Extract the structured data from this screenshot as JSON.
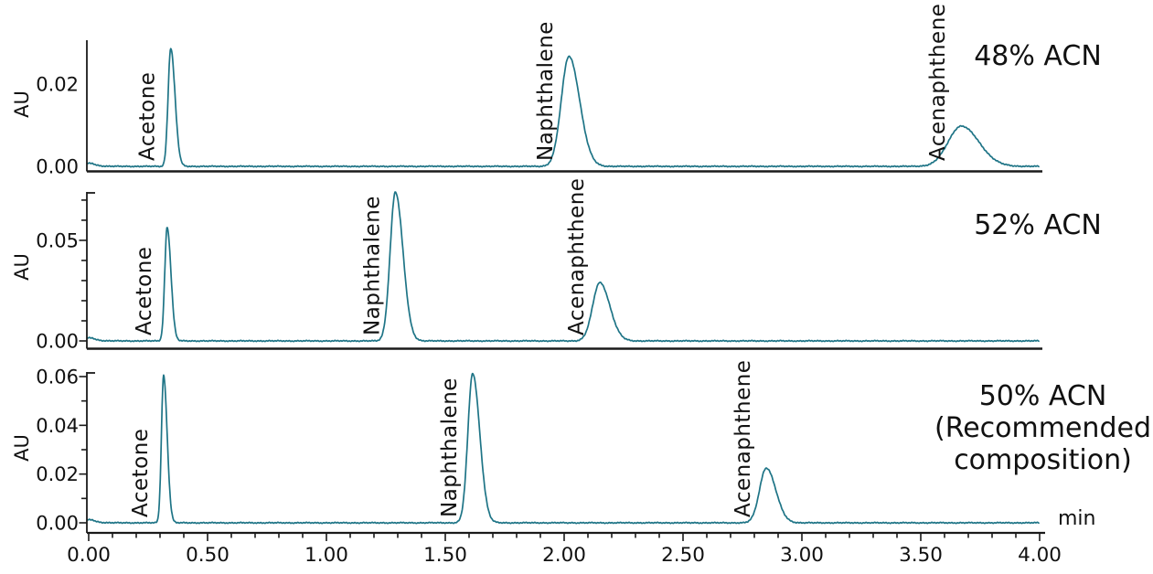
{
  "figure": {
    "kind": "HPLC chromatogram mobile-phase comparison",
    "x_axis": {
      "label": "min",
      "min": 0,
      "max": 4,
      "major_tick_step": 0.5,
      "minor_tick_step": 0.1,
      "tick_labels": [
        "0.00",
        "0.50",
        "1.00",
        "1.50",
        "2.00",
        "2.50",
        "3.00",
        "3.50",
        "4.00"
      ]
    }
  },
  "colors": {
    "trace": "#1e7486",
    "axis": "#1a1a1a",
    "text": "#111111",
    "background": "#ffffff"
  },
  "chart_data": [
    {
      "type": "line",
      "title": "48% ACN",
      "title_lines": [
        "48% ACN"
      ],
      "ylabel": "AU",
      "xlabel": "min",
      "xlim": [
        0,
        4
      ],
      "ylim": [
        0,
        0.0305
      ],
      "grid": false,
      "ytick_labels": [
        {
          "value": 0.0,
          "label": "0.00"
        },
        {
          "value": 0.02,
          "label": "0.02"
        }
      ],
      "minor_ytick_step": 0,
      "peaks": [
        {
          "name": "Acetone",
          "rt_min": 0.345,
          "height_au": 0.0288,
          "sigma_left_min": 0.011,
          "sigma_right_min": 0.018
        },
        {
          "name": "Naphthalene",
          "rt_min": 2.02,
          "height_au": 0.0268,
          "sigma_left_min": 0.032,
          "sigma_right_min": 0.045
        },
        {
          "name": "Acenaphthene",
          "rt_min": 3.67,
          "height_au": 0.0098,
          "sigma_left_min": 0.055,
          "sigma_right_min": 0.075
        }
      ]
    },
    {
      "type": "line",
      "title": "52% ACN",
      "title_lines": [
        "52% ACN"
      ],
      "ylabel": "AU",
      "xlabel": "min",
      "xlim": [
        0,
        4
      ],
      "ylim": [
        0,
        0.0736
      ],
      "grid": false,
      "ytick_labels": [
        {
          "value": 0.0,
          "label": "0.00"
        },
        {
          "value": 0.05,
          "label": "0.05"
        }
      ],
      "minor_ytick_step": 0.01,
      "peaks": [
        {
          "name": "Acetone",
          "rt_min": 0.33,
          "height_au": 0.0565,
          "sigma_left_min": 0.01,
          "sigma_right_min": 0.016
        },
        {
          "name": "Naphthalene",
          "rt_min": 1.29,
          "height_au": 0.074,
          "sigma_left_min": 0.022,
          "sigma_right_min": 0.032
        },
        {
          "name": "Acenaphthene",
          "rt_min": 2.15,
          "height_au": 0.029,
          "sigma_left_min": 0.03,
          "sigma_right_min": 0.042
        }
      ]
    },
    {
      "type": "line",
      "title": "50% ACN (Recommended composition)",
      "title_lines": [
        "50% ACN",
        "(Recommended",
        "composition)"
      ],
      "ylabel": "AU",
      "xlabel": "min",
      "xlim": [
        0,
        4
      ],
      "ylim": [
        0,
        0.0615
      ],
      "grid": false,
      "ytick_labels": [
        {
          "value": 0.0,
          "label": "0.00"
        },
        {
          "value": 0.02,
          "label": "0.02"
        },
        {
          "value": 0.04,
          "label": "0.04"
        },
        {
          "value": 0.06,
          "label": "0.06"
        }
      ],
      "minor_ytick_step": 0.01,
      "peaks": [
        {
          "name": "Acetone",
          "rt_min": 0.315,
          "height_au": 0.0605,
          "sigma_left_min": 0.009,
          "sigma_right_min": 0.015
        },
        {
          "name": "Naphthalene",
          "rt_min": 1.615,
          "height_au": 0.0613,
          "sigma_left_min": 0.02,
          "sigma_right_min": 0.03
        },
        {
          "name": "Acenaphthene",
          "rt_min": 2.85,
          "height_au": 0.0225,
          "sigma_left_min": 0.028,
          "sigma_right_min": 0.04
        }
      ]
    }
  ]
}
